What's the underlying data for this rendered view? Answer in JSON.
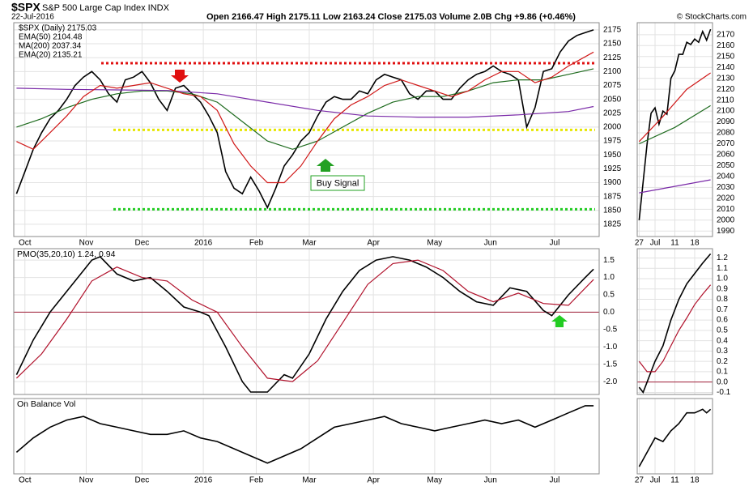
{
  "header": {
    "symbol": "$SPX",
    "name": "S&P 500 Large Cap Index INDX",
    "date": "22-Jul-2016",
    "quote": "Open 2166.47   High 2175.11   Low 2163.24   Close 2175.03   Volume 2.0B   Chg +9.86 (+0.46%)",
    "credit": "© StockCharts.com"
  },
  "chart_data": [
    {
      "type": "line",
      "annotation": "Buy Signal",
      "xlim": [
        -1,
        209
      ],
      "ylim": [
        1803,
        2188
      ],
      "xticks": [
        {
          "value": 3,
          "label": "Oct"
        },
        {
          "value": 25,
          "label": "Nov"
        },
        {
          "value": 45,
          "label": "Dec"
        },
        {
          "value": 67,
          "label": "2016"
        },
        {
          "value": 86,
          "label": "Feb"
        },
        {
          "value": 105,
          "label": "Mar"
        },
        {
          "value": 128,
          "label": "Apr"
        },
        {
          "value": 150,
          "label": "May"
        },
        {
          "value": 170,
          "label": "Jun"
        },
        {
          "value": 193,
          "label": "Jul"
        }
      ],
      "yticks": [
        1825,
        1850,
        1875,
        1900,
        1925,
        1950,
        1975,
        2000,
        2025,
        2050,
        2075,
        2100,
        2125,
        2150,
        2175
      ],
      "levels": [
        {
          "value": 2115,
          "color": "#e01010"
        },
        {
          "value": 1995,
          "color": "#e6e600"
        },
        {
          "value": 1852,
          "color": "#22cc22"
        }
      ],
      "series": [
        {
          "name": "$SPX (Daily) 2175.03",
          "color": "#000000",
          "x": [
            0,
            3,
            6,
            9,
            12,
            15,
            18,
            21,
            24,
            27,
            30,
            33,
            36,
            39,
            42,
            45,
            48,
            51,
            54,
            57,
            60,
            63,
            66,
            69,
            72,
            75,
            78,
            81,
            84,
            87,
            90,
            93,
            96,
            99,
            102,
            105,
            108,
            111,
            114,
            117,
            120,
            123,
            126,
            129,
            132,
            135,
            138,
            141,
            144,
            147,
            150,
            153,
            156,
            159,
            162,
            165,
            168,
            171,
            174,
            177,
            180,
            183,
            186,
            189,
            192,
            195,
            198,
            201,
            204,
            207
          ],
          "values": [
            1880,
            1920,
            1960,
            1990,
            2015,
            2030,
            2050,
            2075,
            2090,
            2100,
            2085,
            2060,
            2045,
            2085,
            2090,
            2100,
            2080,
            2050,
            2030,
            2070,
            2075,
            2060,
            2045,
            2020,
            1990,
            1920,
            1890,
            1880,
            1910,
            1885,
            1855,
            1890,
            1930,
            1950,
            1975,
            1990,
            2020,
            2045,
            2055,
            2050,
            2050,
            2065,
            2060,
            2085,
            2095,
            2090,
            2085,
            2060,
            2050,
            2065,
            2065,
            2050,
            2050,
            2070,
            2085,
            2095,
            2100,
            2110,
            2100,
            2095,
            2085,
            2000,
            2035,
            2100,
            2105,
            2135,
            2155,
            2165,
            2170,
            2175
          ]
        },
        {
          "name": "EMA(50) 2104.48",
          "color": "#1e6b1e",
          "x": [
            0,
            9,
            18,
            27,
            36,
            45,
            54,
            63,
            72,
            81,
            90,
            99,
            108,
            117,
            126,
            135,
            144,
            153,
            162,
            171,
            180,
            189,
            198,
            207
          ],
          "values": [
            2000,
            2015,
            2035,
            2050,
            2060,
            2065,
            2065,
            2060,
            2045,
            2010,
            1975,
            1960,
            1975,
            2000,
            2025,
            2045,
            2055,
            2055,
            2065,
            2080,
            2085,
            2085,
            2095,
            2105
          ]
        },
        {
          "name": "MA(200) 2037.34",
          "color": "#7a2aa8",
          "x": [
            0,
            18,
            36,
            54,
            72,
            90,
            108,
            126,
            144,
            162,
            180,
            198,
            207
          ],
          "values": [
            2070,
            2068,
            2067,
            2066,
            2060,
            2045,
            2030,
            2020,
            2018,
            2018,
            2022,
            2028,
            2037
          ]
        },
        {
          "name": "EMA(20) 2135.21",
          "color": "#d01818",
          "x": [
            0,
            6,
            12,
            18,
            24,
            30,
            36,
            42,
            48,
            54,
            60,
            66,
            72,
            78,
            84,
            90,
            96,
            102,
            108,
            114,
            120,
            126,
            132,
            138,
            144,
            150,
            156,
            162,
            168,
            174,
            180,
            186,
            192,
            198,
            207
          ],
          "values": [
            1974,
            1960,
            1990,
            2020,
            2055,
            2075,
            2070,
            2075,
            2080,
            2070,
            2060,
            2055,
            2030,
            1970,
            1930,
            1900,
            1900,
            1930,
            1975,
            2015,
            2040,
            2055,
            2075,
            2085,
            2075,
            2065,
            2055,
            2065,
            2085,
            2100,
            2100,
            2080,
            2090,
            2110,
            2135
          ]
        }
      ]
    },
    {
      "type": "line",
      "label": "PMO(35,20,10) 1.24, 0.94",
      "xlim": [
        -1,
        209
      ],
      "ylim": [
        -2.37,
        1.83
      ],
      "xticks": [
        {
          "value": 3,
          "label": "Oct"
        },
        {
          "value": 25,
          "label": "Nov"
        },
        {
          "value": 45,
          "label": "Dec"
        },
        {
          "value": 67,
          "label": "2016"
        },
        {
          "value": 86,
          "label": "Feb"
        },
        {
          "value": 105,
          "label": "Mar"
        },
        {
          "value": 128,
          "label": "Apr"
        },
        {
          "value": 150,
          "label": "May"
        },
        {
          "value": 170,
          "label": "Jun"
        },
        {
          "value": 193,
          "label": "Jul"
        }
      ],
      "yticks": [
        1.5,
        {
          "value": 1,
          "label": "1.0"
        },
        0.5,
        {
          "value": 0,
          "label": "0.0"
        },
        -0.5,
        {
          "value": -1,
          "label": "-1.0"
        },
        -1.5,
        {
          "value": -2,
          "label": "-2.0"
        }
      ],
      "levels": [
        {
          "value": 0,
          "color": "#a0203a"
        }
      ],
      "series": [
        {
          "color": "#000000",
          "x": [
            0,
            6,
            12,
            18,
            24,
            27,
            30,
            36,
            42,
            48,
            54,
            60,
            66,
            69,
            75,
            81,
            84,
            90,
            96,
            99,
            105,
            111,
            117,
            123,
            129,
            135,
            141,
            147,
            153,
            159,
            165,
            171,
            177,
            183,
            189,
            192,
            198,
            204,
            207
          ],
          "values": [
            -1.8,
            -0.8,
            0,
            0.6,
            1.2,
            1.5,
            1.6,
            1.1,
            0.9,
            1.0,
            0.6,
            0.15,
            0,
            -0.1,
            -1.0,
            -2.0,
            -2.3,
            -2.3,
            -1.8,
            -1.9,
            -1.2,
            -0.2,
            0.6,
            1.2,
            1.5,
            1.6,
            1.5,
            1.3,
            1.0,
            0.6,
            0.3,
            0.2,
            0.7,
            0.6,
            0.05,
            -0.1,
            0.5,
            1.0,
            1.24
          ]
        },
        {
          "color": "#b0102a",
          "x": [
            0,
            9,
            18,
            27,
            36,
            45,
            54,
            63,
            72,
            81,
            90,
            99,
            108,
            117,
            126,
            135,
            144,
            153,
            162,
            171,
            180,
            189,
            198,
            207
          ],
          "values": [
            -1.9,
            -1.2,
            -0.2,
            0.9,
            1.3,
            1.0,
            0.9,
            0.35,
            0,
            -1.0,
            -1.9,
            -2.0,
            -1.4,
            -0.3,
            0.8,
            1.4,
            1.5,
            1.2,
            0.6,
            0.3,
            0.55,
            0.25,
            0.2,
            0.94
          ]
        }
      ]
    },
    {
      "type": "line",
      "label": "On Balance Vol",
      "xlim": [
        -1,
        209
      ],
      "ylim": [
        0,
        105
      ],
      "xticks": [
        {
          "value": 3,
          "label": "Oct"
        },
        {
          "value": 25,
          "label": "Nov"
        },
        {
          "value": 45,
          "label": "Dec"
        },
        {
          "value": 67,
          "label": "2016"
        },
        {
          "value": 86,
          "label": "Feb"
        },
        {
          "value": 105,
          "label": "Mar"
        },
        {
          "value": 128,
          "label": "Apr"
        },
        {
          "value": 150,
          "label": "May"
        },
        {
          "value": 170,
          "label": "Jun"
        },
        {
          "value": 193,
          "label": "Jul"
        }
      ],
      "series": [
        {
          "color": "#000000",
          "x": [
            0,
            6,
            12,
            18,
            24,
            30,
            36,
            42,
            48,
            54,
            60,
            66,
            72,
            78,
            84,
            90,
            96,
            102,
            108,
            114,
            120,
            126,
            132,
            138,
            144,
            150,
            156,
            162,
            168,
            174,
            180,
            186,
            192,
            198,
            204,
            207
          ],
          "values": [
            30,
            50,
            65,
            75,
            80,
            70,
            65,
            60,
            55,
            55,
            60,
            50,
            45,
            35,
            25,
            15,
            25,
            35,
            50,
            65,
            70,
            75,
            80,
            70,
            65,
            60,
            65,
            70,
            75,
            70,
            75,
            65,
            75,
            85,
            95,
            95
          ]
        }
      ]
    },
    {
      "type": "line",
      "xlim": [
        -0.5,
        18.5
      ],
      "ylim": [
        1985,
        2181
      ],
      "xticks": [
        {
          "value": 0,
          "label": "27"
        },
        {
          "value": 4,
          "label": "Jul"
        },
        {
          "value": 9,
          "label": "11"
        },
        {
          "value": 14,
          "label": "18"
        }
      ],
      "yticks": [
        1990,
        2000,
        2010,
        2020,
        2030,
        2040,
        2050,
        2060,
        2070,
        2080,
        2090,
        2100,
        2110,
        2120,
        2130,
        2140,
        2150,
        2160,
        2170
      ],
      "series": [
        {
          "color": "#000000",
          "x": [
            0,
            1,
            2,
            3,
            4,
            5,
            6,
            7,
            8,
            9,
            10,
            11,
            12,
            13,
            14,
            15,
            16,
            17,
            18
          ],
          "values": [
            2000,
            2035,
            2070,
            2098,
            2103,
            2088,
            2100,
            2097,
            2130,
            2137,
            2152,
            2152,
            2163,
            2161,
            2166,
            2163,
            2173,
            2165,
            2175
          ]
        },
        {
          "color": "#d01818",
          "x": [
            0,
            6,
            12,
            18
          ],
          "values": [
            2072,
            2095,
            2120,
            2135
          ]
        },
        {
          "color": "#1e6b1e",
          "x": [
            0,
            9,
            18
          ],
          "values": [
            2070,
            2085,
            2105
          ]
        },
        {
          "color": "#7a2aa8",
          "x": [
            0,
            18
          ],
          "values": [
            2025,
            2037
          ]
        }
      ]
    },
    {
      "type": "line",
      "xlim": [
        -0.5,
        18.5
      ],
      "ylim": [
        -0.12,
        1.29
      ],
      "xticks": [
        {
          "value": 0,
          "label": "27"
        },
        {
          "value": 4,
          "label": "Jul"
        },
        {
          "value": 9,
          "label": "11"
        },
        {
          "value": 14,
          "label": "18"
        }
      ],
      "yticks": [
        1.2,
        1.1,
        {
          "value": 1,
          "label": "1.0"
        },
        0.9,
        0.8,
        0.7,
        0.6,
        0.5,
        0.4,
        0.3,
        0.2,
        0.1,
        {
          "value": 0,
          "label": "0.0"
        },
        -0.1
      ],
      "levels": [
        {
          "value": 0,
          "color": "#a0203a"
        }
      ],
      "series": [
        {
          "color": "#000000",
          "x": [
            0,
            1,
            2,
            4,
            6,
            8,
            10,
            12,
            14,
            16,
            18
          ],
          "values": [
            -0.05,
            -0.1,
            0,
            0.2,
            0.35,
            0.6,
            0.8,
            0.95,
            1.05,
            1.15,
            1.24
          ]
        },
        {
          "color": "#b0102a",
          "x": [
            0,
            2,
            4,
            6,
            8,
            10,
            12,
            14,
            16,
            18
          ],
          "values": [
            0.2,
            0.1,
            0.1,
            0.2,
            0.35,
            0.5,
            0.62,
            0.75,
            0.85,
            0.94
          ]
        }
      ]
    },
    {
      "type": "line",
      "xlim": [
        -0.5,
        18.5
      ],
      "ylim": [
        0,
        105
      ],
      "xticks": [
        {
          "value": 0,
          "label": "27"
        },
        {
          "value": 4,
          "label": "Jul"
        },
        {
          "value": 9,
          "label": "11"
        },
        {
          "value": 14,
          "label": "18"
        }
      ],
      "series": [
        {
          "color": "#000000",
          "x": [
            0,
            2,
            4,
            6,
            8,
            10,
            12,
            14,
            16,
            17,
            18
          ],
          "values": [
            10,
            30,
            50,
            45,
            60,
            70,
            85,
            85,
            90,
            85,
            90
          ]
        }
      ]
    }
  ]
}
